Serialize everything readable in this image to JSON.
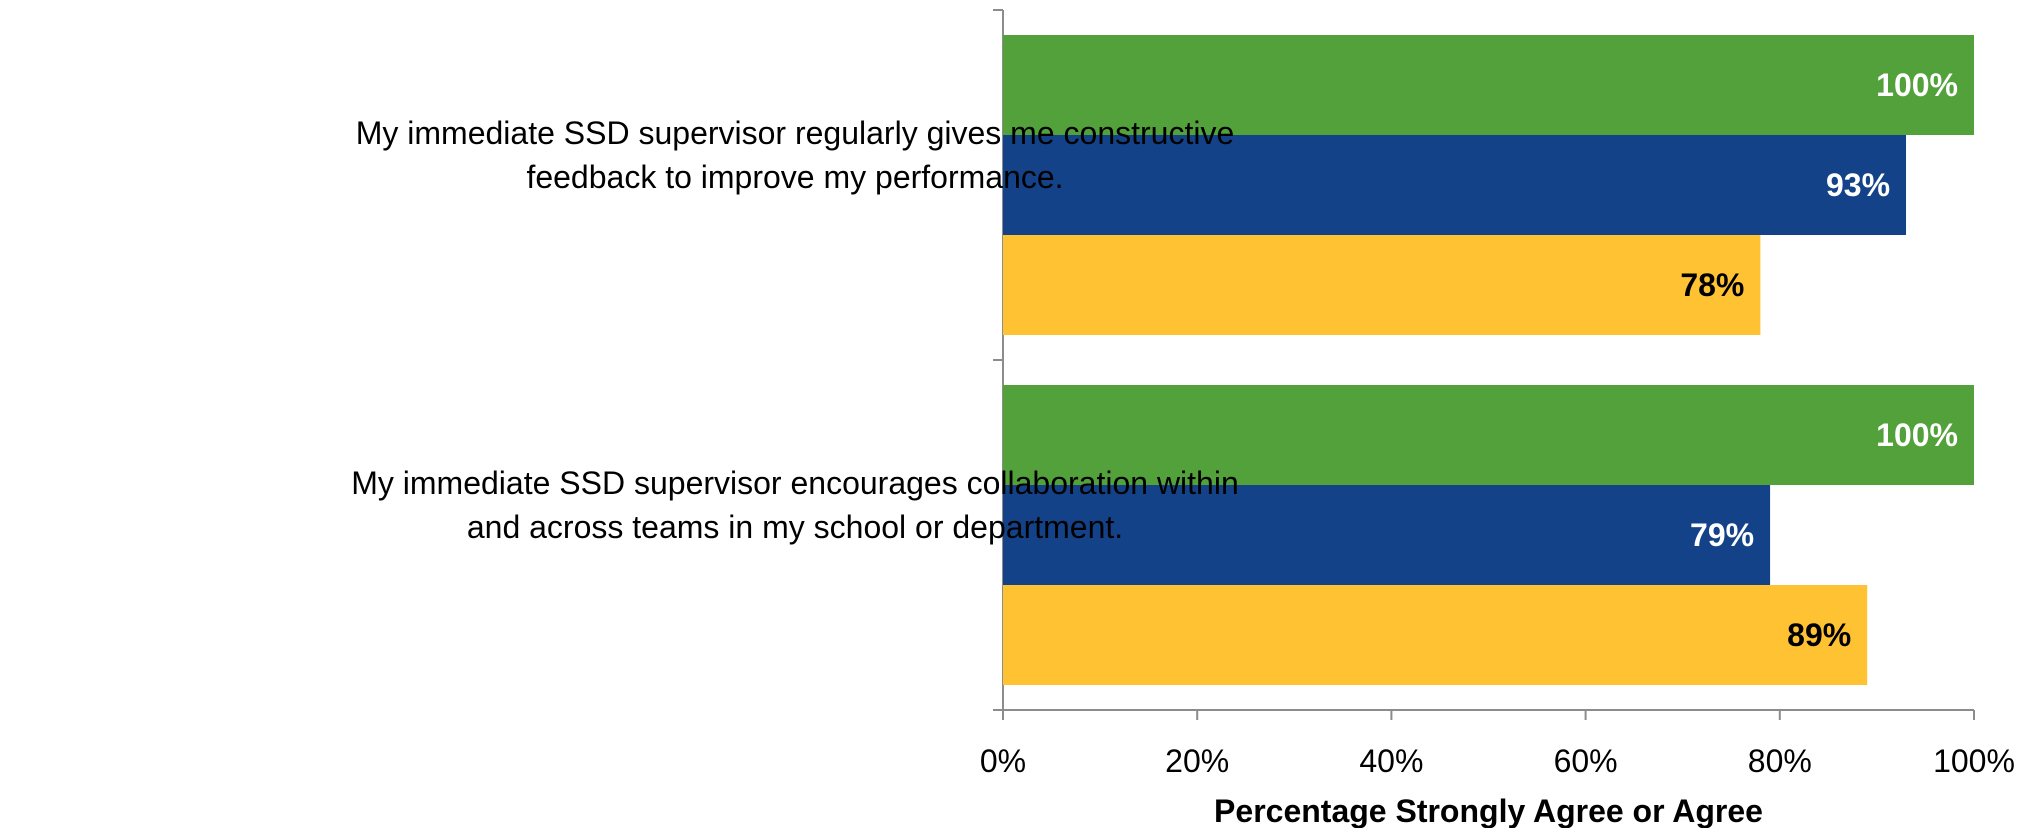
{
  "chart_data": {
    "type": "bar",
    "orientation": "horizontal",
    "categories": [
      "My immediate SSD supervisor regularly gives me constructive feedback to improve my performance.",
      "My immediate SSD supervisor encourages collaboration within and across teams in my school or department."
    ],
    "category_lines": [
      [
        "My immediate SSD supervisor regularly gives me constructive",
        "feedback to improve my performance."
      ],
      [
        "My immediate SSD supervisor encourages collaboration within",
        "and across teams in my school or department."
      ]
    ],
    "series": [
      {
        "color": "#53A13A",
        "label_color": "#ffffff",
        "values": [
          100,
          100
        ]
      },
      {
        "color": "#134289",
        "label_color": "#ffffff",
        "values": [
          93,
          79
        ]
      },
      {
        "color": "#FFC232",
        "label_color": "#000000",
        "values": [
          78,
          89
        ]
      }
    ],
    "data_labels": [
      [
        "100%",
        "93%",
        "78%"
      ],
      [
        "100%",
        "79%",
        "89%"
      ]
    ],
    "xlabel": "Percentage Strongly Agree or Agree",
    "xlim": [
      0,
      100
    ],
    "xticks": [
      0,
      20,
      40,
      60,
      80,
      100
    ],
    "xtick_labels": [
      "0%",
      "20%",
      "40%",
      "60%",
      "80%",
      "100%"
    ],
    "grid": false,
    "legend": "none"
  }
}
